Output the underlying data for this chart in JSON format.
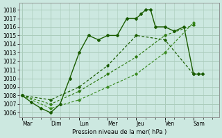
{
  "xlabel": "Pression niveau de la mer( hPa )",
  "days": [
    "Mar",
    "Dim",
    "Lun",
    "Mer",
    "Jeu",
    "Ven",
    "Sam"
  ],
  "ylim": [
    1005.5,
    1018.8
  ],
  "yticks": [
    1006,
    1007,
    1008,
    1009,
    1010,
    1011,
    1012,
    1013,
    1014,
    1015,
    1016,
    1017,
    1018
  ],
  "bg_color": "#cce8e0",
  "grid_color": "#aaccbb",
  "dark_green": "#1a5c00",
  "mid_green": "#2d7a10",
  "line1_x": [
    0,
    0.33,
    0.67,
    1.0,
    1.33,
    1.67,
    2.0,
    2.33,
    2.67,
    3.0,
    3.33,
    3.67,
    4.0,
    4.17,
    4.33,
    4.5,
    4.67,
    5.0,
    5.33,
    5.67,
    6.0,
    6.17,
    6.33
  ],
  "line1_y": [
    1008,
    1007.2,
    1006.5,
    1006,
    1007,
    1010,
    1013,
    1015,
    1014.5,
    1015,
    1015,
    1017,
    1017,
    1017.5,
    1018,
    1018,
    1016,
    1016,
    1015.5,
    1016,
    1010.5,
    1010.5,
    1010.5
  ],
  "line2_x": [
    0,
    1,
    2,
    3,
    4,
    5,
    6
  ],
  "line2_y": [
    1008,
    1007.5,
    1009.0,
    1011.5,
    1015,
    1014.5,
    1010.5
  ],
  "line3_x": [
    0,
    1,
    2,
    3,
    4,
    5,
    6
  ],
  "line3_y": [
    1008,
    1007.0,
    1008.5,
    1010.5,
    1012.5,
    1015.0,
    1016.2
  ],
  "line4_x": [
    0,
    1,
    2,
    3,
    4,
    5,
    6
  ],
  "line4_y": [
    1008,
    1006.5,
    1007.5,
    1009.0,
    1010.5,
    1013.0,
    1016.5
  ]
}
